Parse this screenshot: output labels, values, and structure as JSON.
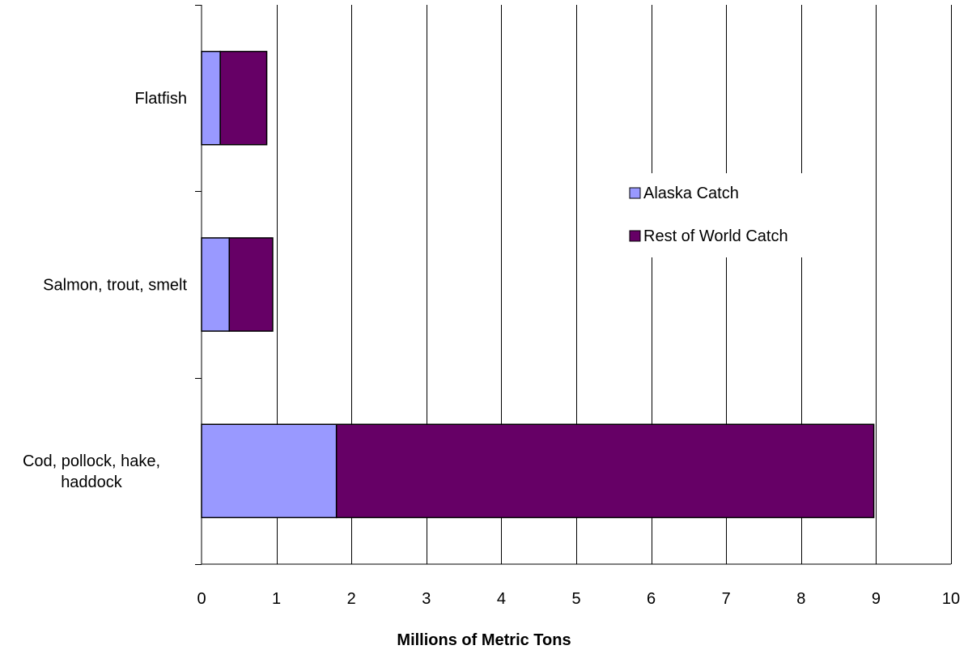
{
  "chart_data": {
    "type": "bar",
    "orientation": "horizontal",
    "stacked": true,
    "categories": [
      "Flatfish",
      "Salmon, trout, smelt",
      "Cod, pollock, hake, haddock"
    ],
    "series": [
      {
        "name": "Alaska Catch",
        "values": [
          0.25,
          0.37,
          1.8
        ],
        "color": "#9999ff"
      },
      {
        "name": "Rest of World Catch",
        "values": [
          0.62,
          0.58,
          7.17
        ],
        "color": "#660066"
      }
    ],
    "xlabel": "Millions of Metric Tons",
    "ylabel": "",
    "xlim": [
      0,
      10
    ],
    "xticks": [
      "0",
      "1",
      "2",
      "3",
      "4",
      "5",
      "6",
      "7",
      "8",
      "9",
      "10"
    ],
    "grid": "vertical",
    "legend_position": "right"
  }
}
